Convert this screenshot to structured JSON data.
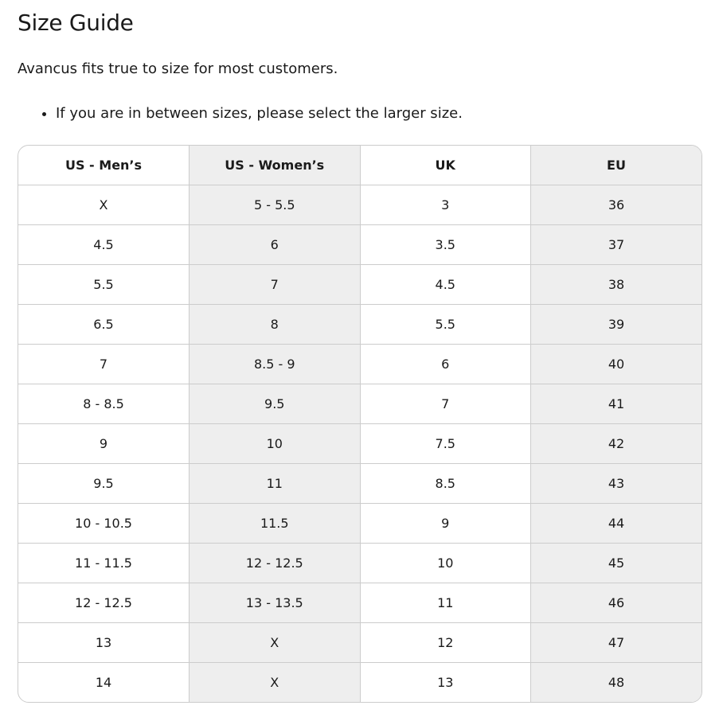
{
  "title": "Size Guide",
  "intro": "Avancus fits true to size for most customers.",
  "bullets": [
    "If you are in between sizes, please select the larger size."
  ],
  "table": {
    "headers": [
      "US - Men’s",
      "US - Women’s",
      "UK",
      "EU"
    ],
    "rows": [
      [
        "X",
        "5 - 5.5",
        "3",
        "36"
      ],
      [
        "4.5",
        "6",
        "3.5",
        "37"
      ],
      [
        "5.5",
        "7",
        "4.5",
        "38"
      ],
      [
        "6.5",
        "8",
        "5.5",
        "39"
      ],
      [
        "7",
        "8.5 - 9",
        "6",
        "40"
      ],
      [
        "8 - 8.5",
        "9.5",
        "7",
        "41"
      ],
      [
        "9",
        "10",
        "7.5",
        "42"
      ],
      [
        "9.5",
        "11",
        "8.5",
        "43"
      ],
      [
        "10 - 10.5",
        "11.5",
        "9",
        "44"
      ],
      [
        "11 - 11.5",
        "12 - 12.5",
        "10",
        "45"
      ],
      [
        "12 - 12.5",
        "13 - 13.5",
        "11",
        "46"
      ],
      [
        "13",
        "X",
        "12",
        "47"
      ],
      [
        "14",
        "X",
        "13",
        "48"
      ]
    ]
  }
}
